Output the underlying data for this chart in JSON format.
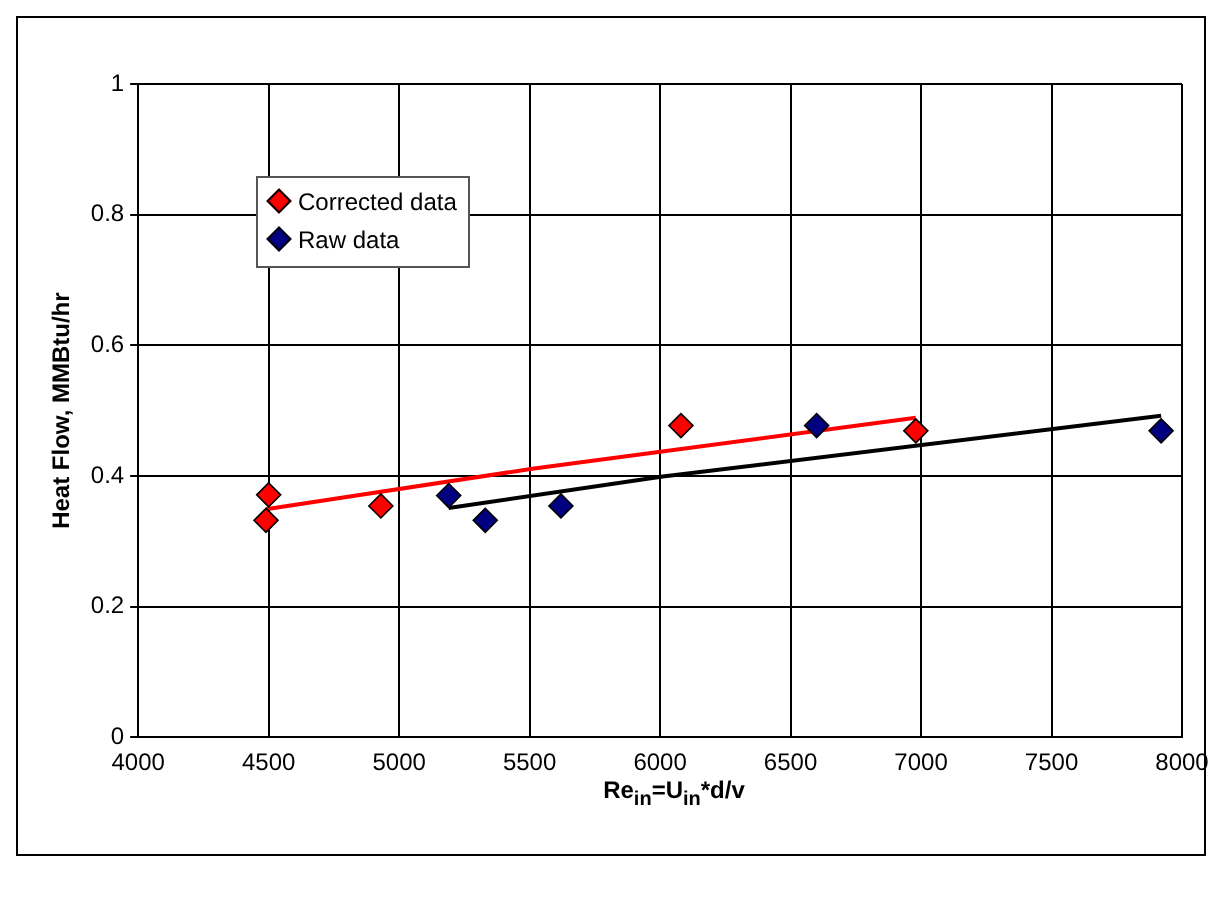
{
  "chart_data": {
    "type": "scatter",
    "xlabel": "Re$_{in}$=U$_{in}$*d/v",
    "ylabel": "Heat Flow, MMBtu/hr",
    "xlim": [
      4000,
      8000
    ],
    "xticks": [
      4000,
      4500,
      5000,
      5500,
      6000,
      6500,
      7000,
      7500,
      8000
    ],
    "ylim": [
      0,
      1
    ],
    "yticks": [
      0,
      0.2,
      0.4,
      0.6,
      0.8,
      1
    ],
    "grid": true,
    "legend": "top left",
    "marker": "diamond",
    "series": [
      {
        "name": "Corrected data",
        "color": "#ff0000",
        "x": [
          4500,
          4490,
          4930,
          6080,
          6980
        ],
        "values": [
          0.371,
          0.332,
          0.354,
          0.477,
          0.469
        ]
      },
      {
        "name": "Raw data",
        "color": "#000080",
        "x": [
          5190,
          5330,
          5620,
          6600,
          7920
        ],
        "values": [
          0.37,
          0.332,
          0.354,
          0.477,
          0.469
        ]
      },
      {
        "type": "line",
        "marker": "none",
        "color": "#ff0000",
        "x": [
          4490,
          5510,
          6980
        ],
        "values": [
          0.349,
          0.411,
          0.489
        ]
      },
      {
        "type": "line",
        "marker": "none",
        "color": "#000000",
        "x": [
          5190,
          6010,
          7920
        ],
        "values": [
          0.351,
          0.399,
          0.492
        ]
      }
    ]
  }
}
